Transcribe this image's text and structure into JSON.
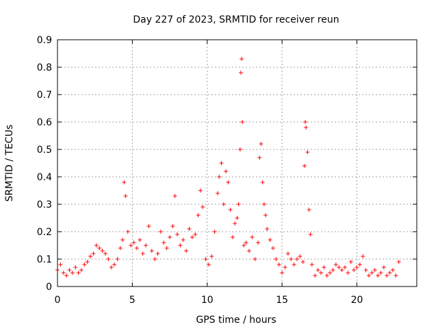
{
  "chart_data": {
    "type": "scatter",
    "title": "Day 227 of 2023, SRMTID for receiver reun",
    "xlabel": "GPS time / hours",
    "ylabel": "SRMTID / TECUs",
    "xlim": [
      0,
      24
    ],
    "ylim": [
      0,
      0.9
    ],
    "xticks": [
      0,
      5,
      10,
      15,
      20
    ],
    "yticks": [
      0,
      0.1,
      0.2,
      0.3,
      0.4,
      0.5,
      0.6,
      0.7,
      0.8,
      0.9
    ],
    "xtick_labels": [
      "0",
      "5",
      "10",
      "15",
      "20"
    ],
    "ytick_labels": [
      "0",
      "0.1",
      "0.2",
      "0.3",
      "0.4",
      "0.5",
      "0.6",
      "0.7",
      "0.8",
      "0.9"
    ],
    "grid": true,
    "marker": "+",
    "color": "#ff0000",
    "series": [
      {
        "name": "SRMTID",
        "x": [
          0.0,
          0.2,
          0.4,
          0.6,
          0.8,
          1.0,
          1.2,
          1.4,
          1.6,
          1.8,
          2.0,
          2.2,
          2.4,
          2.6,
          2.8,
          3.0,
          3.2,
          3.4,
          3.6,
          3.8,
          4.0,
          4.2,
          4.35,
          4.45,
          4.55,
          4.7,
          4.9,
          5.1,
          5.3,
          5.5,
          5.7,
          5.9,
          6.1,
          6.3,
          6.5,
          6.7,
          6.9,
          7.1,
          7.3,
          7.5,
          7.7,
          7.85,
          8.0,
          8.2,
          8.4,
          8.6,
          8.8,
          9.0,
          9.2,
          9.4,
          9.55,
          9.7,
          9.9,
          10.1,
          10.3,
          10.5,
          10.7,
          10.8,
          10.95,
          11.1,
          11.25,
          11.4,
          11.55,
          11.7,
          11.85,
          12.0,
          12.1,
          12.2,
          12.25,
          12.3,
          12.35,
          12.45,
          12.6,
          12.8,
          13.0,
          13.2,
          13.4,
          13.5,
          13.6,
          13.7,
          13.8,
          13.9,
          14.0,
          14.2,
          14.4,
          14.6,
          14.8,
          15.0,
          15.2,
          15.4,
          15.6,
          15.8,
          16.0,
          16.2,
          16.4,
          16.5,
          16.55,
          16.6,
          16.7,
          16.8,
          16.9,
          17.0,
          17.2,
          17.4,
          17.6,
          17.8,
          18.0,
          18.2,
          18.4,
          18.6,
          18.8,
          19.0,
          19.2,
          19.4,
          19.6,
          19.8,
          20.0,
          20.2,
          20.4,
          20.6,
          20.8,
          21.0,
          21.2,
          21.4,
          21.6,
          21.8,
          22.0,
          22.2,
          22.4,
          22.6,
          22.8
        ],
        "y": [
          0.06,
          0.08,
          0.05,
          0.04,
          0.06,
          0.05,
          0.07,
          0.05,
          0.06,
          0.08,
          0.09,
          0.11,
          0.12,
          0.15,
          0.14,
          0.13,
          0.12,
          0.1,
          0.07,
          0.08,
          0.1,
          0.14,
          0.17,
          0.38,
          0.33,
          0.2,
          0.15,
          0.16,
          0.14,
          0.17,
          0.12,
          0.15,
          0.22,
          0.13,
          0.1,
          0.12,
          0.2,
          0.16,
          0.14,
          0.18,
          0.22,
          0.33,
          0.19,
          0.15,
          0.17,
          0.13,
          0.21,
          0.18,
          0.19,
          0.26,
          0.35,
          0.29,
          0.1,
          0.08,
          0.11,
          0.2,
          0.34,
          0.4,
          0.45,
          0.3,
          0.42,
          0.38,
          0.28,
          0.18,
          0.23,
          0.25,
          0.3,
          0.5,
          0.78,
          0.83,
          0.6,
          0.15,
          0.16,
          0.13,
          0.18,
          0.1,
          0.16,
          0.47,
          0.52,
          0.38,
          0.3,
          0.26,
          0.21,
          0.17,
          0.14,
          0.1,
          0.08,
          0.05,
          0.07,
          0.12,
          0.1,
          0.08,
          0.1,
          0.11,
          0.09,
          0.44,
          0.6,
          0.58,
          0.49,
          0.28,
          0.19,
          0.08,
          0.04,
          0.06,
          0.05,
          0.07,
          0.04,
          0.05,
          0.06,
          0.08,
          0.07,
          0.06,
          0.07,
          0.05,
          0.09,
          0.06,
          0.07,
          0.08,
          0.11,
          0.06,
          0.04,
          0.05,
          0.06,
          0.04,
          0.05,
          0.07,
          0.04,
          0.05,
          0.06,
          0.04,
          0.09
        ]
      }
    ]
  }
}
